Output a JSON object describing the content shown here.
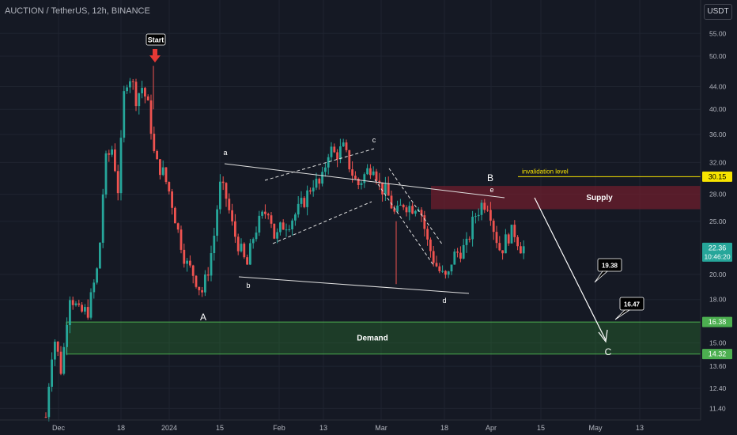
{
  "header": {
    "title": "AUCTION / TetherUS, 12h, BINANCE",
    "currency": "USDT"
  },
  "colors": {
    "background": "#151924",
    "up": "#26a69a",
    "down": "#ef5350",
    "demand": "#2e7d32",
    "supply": "#7b1f2e",
    "invalidation": "#f7e400",
    "grid": "#1f2430"
  },
  "chart_data": {
    "type": "candlestick",
    "y_scale": "log",
    "ylim": [
      11.0,
      60.0
    ],
    "y_ticks": [
      11.4,
      12.4,
      13.6,
      15.0,
      16.38,
      18.0,
      20.0,
      22.36,
      25.0,
      28.0,
      30.15,
      32.0,
      36.0,
      40.0,
      44.0,
      50.0,
      55.0
    ],
    "x_labels": [
      "Dec",
      "18",
      "2024",
      "15",
      "Feb",
      "13",
      "Mar",
      "18",
      "Apr",
      "15",
      "May",
      "13"
    ],
    "last_price": "22.36",
    "countdown": "10:46:20",
    "annotations": {
      "start_label": "Start",
      "wave_labels": [
        "A",
        "B",
        "C"
      ],
      "sub_wave_labels": [
        "a",
        "b",
        "c",
        "d",
        "e"
      ],
      "invalidation_label": "invalidation level",
      "invalidation_price": "30.15",
      "supply_label": "Supply",
      "demand_label": "Demand",
      "demand_top": "16.38",
      "demand_bottom": "14.32",
      "target_1": "19.38",
      "target_2": "16.47"
    }
  }
}
